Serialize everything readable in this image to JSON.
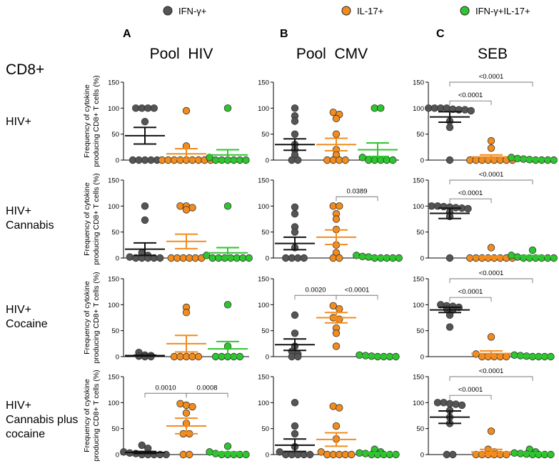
{
  "legend": [
    {
      "label": "IFN-γ+",
      "color": "#555555"
    },
    {
      "label": "IL-17+",
      "color": "#f28c1e"
    },
    {
      "label": "IFN-γ+IL-17+",
      "color": "#2ec62e"
    }
  ],
  "columns": [
    {
      "letter": "A",
      "title": "Pool  HIV"
    },
    {
      "letter": "B",
      "title": "Pool  CMV"
    },
    {
      "letter": "C",
      "title": "SEB"
    }
  ],
  "cell_type": "CD8+",
  "rows": [
    {
      "label_lines": [
        "HIV+"
      ]
    },
    {
      "label_lines": [
        "HIV+",
        "Cannabis"
      ]
    },
    {
      "label_lines": [
        "HIV+",
        "Cocaine"
      ]
    },
    {
      "label_lines": [
        "HIV+",
        "Cannabis plus",
        "cocaine"
      ]
    }
  ],
  "ylabel_lines": [
    "Frequency of cytokine",
    "producing CD8+ T cells (%)"
  ],
  "chart_data": {
    "type": "scatter",
    "ylim": [
      0,
      150
    ],
    "yticks": [
      "0",
      "50",
      "100",
      "150"
    ],
    "panels": [
      {
        "row": 0,
        "col": 0,
        "groups": [
          {
            "points": [
              100,
              100,
              100,
              100,
              74,
              0,
              0,
              0,
              0,
              0
            ],
            "mean": 47,
            "sem": 16
          },
          {
            "points": [
              95,
              27,
              0,
              0,
              0,
              0,
              0,
              0,
              0,
              0,
              0
            ],
            "mean": 12,
            "sem": 10
          },
          {
            "points": [
              100,
              5,
              0,
              0,
              0,
              0,
              0,
              0
            ],
            "mean": 10,
            "sem": 10
          }
        ],
        "comparisons": []
      },
      {
        "row": 0,
        "col": 1,
        "groups": [
          {
            "points": [
              100,
              85,
              75,
              50,
              30,
              20,
              10,
              0,
              0
            ],
            "mean": 30,
            "sem": 11
          },
          {
            "points": [
              92,
              88,
              80,
              50,
              20,
              10,
              0,
              0,
              0,
              0
            ],
            "mean": 30,
            "sem": 12
          },
          {
            "points": [
              100,
              100,
              5,
              0,
              0,
              0,
              0,
              0
            ],
            "mean": 20,
            "sem": 13
          }
        ],
        "comparisons": []
      },
      {
        "row": 0,
        "col": 2,
        "groups": [
          {
            "points": [
              100,
              100,
              98,
              97,
              95,
              97,
              100,
              100,
              75,
              63,
              0
            ],
            "mean": 83,
            "sem": 10
          },
          {
            "points": [
              37,
              23,
              0,
              0,
              0,
              0,
              0,
              0,
              0,
              0
            ],
            "mean": 6,
            "sem": 4
          },
          {
            "points": [
              5,
              3,
              2,
              1,
              0,
              0,
              0,
              0
            ],
            "mean": 2,
            "sem": 1
          }
        ],
        "comparisons": [
          {
            "from": 0,
            "to": 1,
            "label": "<0.0001"
          },
          {
            "from": 0,
            "to": 2,
            "label": "<0.0001"
          }
        ]
      },
      {
        "row": 1,
        "col": 0,
        "groups": [
          {
            "points": [
              100,
              73,
              10,
              5,
              2,
              0,
              0,
              0,
              0,
              0
            ],
            "mean": 17,
            "sem": 12
          },
          {
            "points": [
              100,
              100,
              97,
              93,
              0,
              0,
              0,
              0,
              0,
              0
            ],
            "mean": 32,
            "sem": 14
          },
          {
            "points": [
              100,
              5,
              0,
              0,
              0,
              0,
              0,
              0,
              0
            ],
            "mean": 10,
            "sem": 10
          }
        ],
        "comparisons": []
      },
      {
        "row": 1,
        "col": 1,
        "groups": [
          {
            "points": [
              98,
              85,
              60,
              50,
              20,
              0,
              0,
              0,
              0
            ],
            "mean": 28,
            "sem": 12
          },
          {
            "points": [
              100,
              100,
              85,
              75,
              55,
              25,
              10,
              0,
              0
            ],
            "mean": 40,
            "sem": 14
          },
          {
            "points": [
              5,
              3,
              2,
              0,
              0,
              0,
              0,
              0
            ],
            "mean": 2,
            "sem": 1
          }
        ],
        "comparisons": [
          {
            "from": 1,
            "to": 2,
            "label": "0.0389"
          }
        ]
      },
      {
        "row": 1,
        "col": 2,
        "groups": [
          {
            "points": [
              100,
              100,
              99,
              98,
              97,
              96,
              95,
              88,
              80,
              0
            ],
            "mean": 86,
            "sem": 10
          },
          {
            "points": [
              20,
              0,
              0,
              0,
              0,
              0,
              0,
              0,
              0
            ],
            "mean": 2,
            "sem": 2
          },
          {
            "points": [
              15,
              5,
              2,
              0,
              0,
              0,
              0,
              0,
              0
            ],
            "mean": 3,
            "sem": 2
          }
        ],
        "comparisons": [
          {
            "from": 0,
            "to": 1,
            "label": "<0.0001"
          },
          {
            "from": 0,
            "to": 2,
            "label": "<0.0001"
          }
        ]
      },
      {
        "row": 2,
        "col": 0,
        "groups": [
          {
            "points": [
              8,
              3,
              2,
              1,
              0,
              0
            ],
            "mean": 2,
            "sem": 1
          },
          {
            "points": [
              95,
              85,
              0,
              0,
              0,
              0,
              0
            ],
            "mean": 25,
            "sem": 16
          },
          {
            "points": [
              100,
              20,
              0,
              0,
              0,
              0,
              0
            ],
            "mean": 15,
            "sem": 14
          }
        ],
        "comparisons": []
      },
      {
        "row": 2,
        "col": 1,
        "groups": [
          {
            "points": [
              80,
              45,
              20,
              10,
              5,
              0,
              0
            ],
            "mean": 23,
            "sem": 11
          },
          {
            "points": [
              98,
              92,
              75,
              72,
              55,
              45,
              20
            ],
            "mean": 75,
            "sem": 10
          },
          {
            "points": [
              3,
              2,
              1,
              0,
              0,
              0,
              0
            ],
            "mean": 1,
            "sem": 1
          }
        ],
        "comparisons": [
          {
            "from": 0,
            "to": 1,
            "label": "0.0020"
          },
          {
            "from": 1,
            "to": 2,
            "label": "<0.0001"
          }
        ]
      },
      {
        "row": 2,
        "col": 2,
        "groups": [
          {
            "points": [
              100,
              98,
              97,
              95,
              92,
              90,
              80,
              57
            ],
            "mean": 90,
            "sem": 5
          },
          {
            "points": [
              38,
              5,
              0,
              0,
              0,
              0,
              0
            ],
            "mean": 6,
            "sem": 5
          },
          {
            "points": [
              3,
              2,
              1,
              0,
              0,
              0,
              0
            ],
            "mean": 1,
            "sem": 1
          }
        ],
        "comparisons": [
          {
            "from": 0,
            "to": 1,
            "label": "<0.0001"
          },
          {
            "from": 0,
            "to": 2,
            "label": "<0.0001"
          }
        ]
      },
      {
        "row": 3,
        "col": 0,
        "groups": [
          {
            "points": [
              18,
              12,
              5,
              3,
              2,
              0,
              0,
              0,
              0,
              0
            ],
            "mean": 4,
            "sem": 2
          },
          {
            "points": [
              98,
              95,
              92,
              80,
              60,
              40,
              40,
              0,
              0
            ],
            "mean": 55,
            "sem": 15
          },
          {
            "points": [
              16,
              5,
              2,
              0,
              0,
              0,
              0,
              0
            ],
            "mean": 3,
            "sem": 2
          }
        ],
        "comparisons": [
          {
            "from": 0,
            "to": 1,
            "label": "0.0010"
          },
          {
            "from": 1,
            "to": 2,
            "label": "0.0008"
          }
        ]
      },
      {
        "row": 3,
        "col": 1,
        "groups": [
          {
            "points": [
              100,
              55,
              40,
              15,
              5,
              0,
              0,
              0,
              0,
              0
            ],
            "mean": 18,
            "sem": 12
          },
          {
            "points": [
              93,
              90,
              55,
              30,
              5,
              0,
              0,
              0,
              0,
              0
            ],
            "mean": 29,
            "sem": 13
          },
          {
            "points": [
              10,
              5,
              3,
              2,
              0,
              0,
              0,
              0,
              0
            ],
            "mean": 3,
            "sem": 1
          }
        ],
        "comparisons": []
      },
      {
        "row": 3,
        "col": 2,
        "groups": [
          {
            "points": [
              100,
              100,
              98,
              97,
              95,
              85,
              72,
              60,
              0,
              0
            ],
            "mean": 72,
            "sem": 12
          },
          {
            "points": [
              45,
              10,
              5,
              0,
              0,
              0,
              0,
              0,
              0
            ],
            "mean": 5,
            "sem": 5
          },
          {
            "points": [
              10,
              5,
              3,
              2,
              1,
              0,
              0,
              0,
              0
            ],
            "mean": 3,
            "sem": 1
          }
        ],
        "comparisons": [
          {
            "from": 0,
            "to": 1,
            "label": "<0.0001"
          },
          {
            "from": 0,
            "to": 2,
            "label": "<0.0001"
          }
        ]
      }
    ]
  }
}
